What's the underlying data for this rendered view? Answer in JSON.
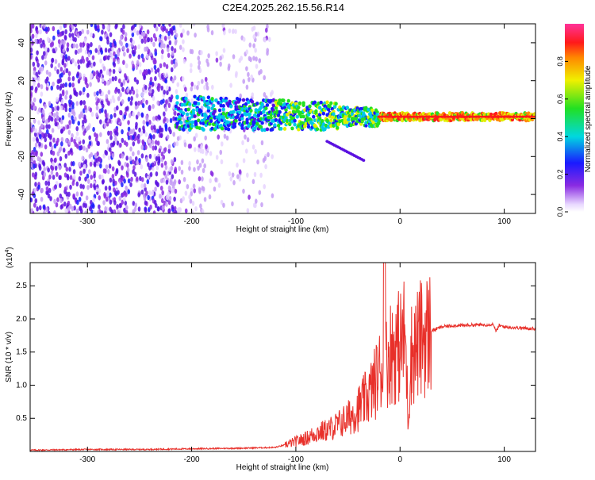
{
  "figure_title": "C2E4.2025.262.15.56.R14",
  "colors": {
    "axis": "#000000",
    "background": "#ffffff",
    "snr_line": "#e8302a",
    "gridline": "#000000"
  },
  "chart_data": [
    {
      "type": "heatmap",
      "title": "C2E4.2025.262.15.56.R14",
      "xlabel": "Height of straight line (km)",
      "ylabel": "Frequency (Hz)",
      "xlim": [
        -355,
        130
      ],
      "ylim": [
        -50,
        50
      ],
      "xticks": [
        -300,
        -200,
        -100,
        0,
        100
      ],
      "yticks": [
        -40,
        -20,
        0,
        20,
        40
      ],
      "colorbar": {
        "label": "Normalized spectral amplitude",
        "range": [
          0,
          1
        ],
        "ticks": [
          "0.0",
          "0.2",
          "0.4",
          "0.6",
          "0.8"
        ],
        "tick_values": [
          0,
          0.2,
          0.4,
          0.6,
          0.8
        ],
        "colormap": "rainbow (white-purple-blue-cyan-green-yellow-red-magenta)"
      },
      "features": {
        "noise_region_km": [
          -355,
          -120
        ],
        "signal_onset_km": -215,
        "carrier_frequency_hz": 1,
        "carrier_band_hz": [
          -2,
          4
        ],
        "side_branch": {
          "from_km": -70,
          "to_km": -35,
          "freq_from_hz": -12,
          "freq_to_hz": -22
        }
      }
    },
    {
      "type": "line",
      "title": "",
      "xlabel": "Height of straight line (km)",
      "ylabel": "SNR (10 * v/v)",
      "y_multiplier_label": "(x10",
      "y_multiplier_exponent": "4",
      "y_multiplier_close": ")",
      "xlim": [
        -355,
        130
      ],
      "ylim": [
        0,
        2.85
      ],
      "xticks": [
        -300,
        -200,
        -100,
        0,
        100
      ],
      "yticks": [
        0.5,
        1.0,
        1.5,
        2.0,
        2.5
      ],
      "ytick_labels": [
        "0.5",
        "1.0",
        "1.5",
        "2.0",
        "2.5"
      ],
      "series": [
        {
          "name": "SNR",
          "x": [
            -355,
            -300,
            -250,
            -200,
            -150,
            -120,
            -110,
            -100,
            -90,
            -80,
            -70,
            -60,
            -50,
            -40,
            -30,
            -25,
            -20,
            -16,
            -15,
            -14,
            -10,
            -5,
            0,
            5,
            8,
            10,
            20,
            30,
            40,
            50,
            60,
            70,
            80,
            90,
            92,
            95,
            100,
            110,
            120,
            130
          ],
          "y": [
            0.02,
            0.03,
            0.03,
            0.04,
            0.05,
            0.06,
            0.1,
            0.15,
            0.2,
            0.28,
            0.32,
            0.4,
            0.5,
            0.65,
            0.85,
            1.0,
            1.2,
            1.3,
            2.85,
            1.3,
            1.5,
            1.55,
            1.6,
            1.75,
            0.4,
            1.45,
            1.7,
            1.82,
            1.88,
            1.9,
            1.9,
            1.91,
            1.91,
            1.92,
            1.8,
            1.9,
            1.88,
            1.87,
            1.86,
            1.85
          ]
        }
      ]
    }
  ]
}
